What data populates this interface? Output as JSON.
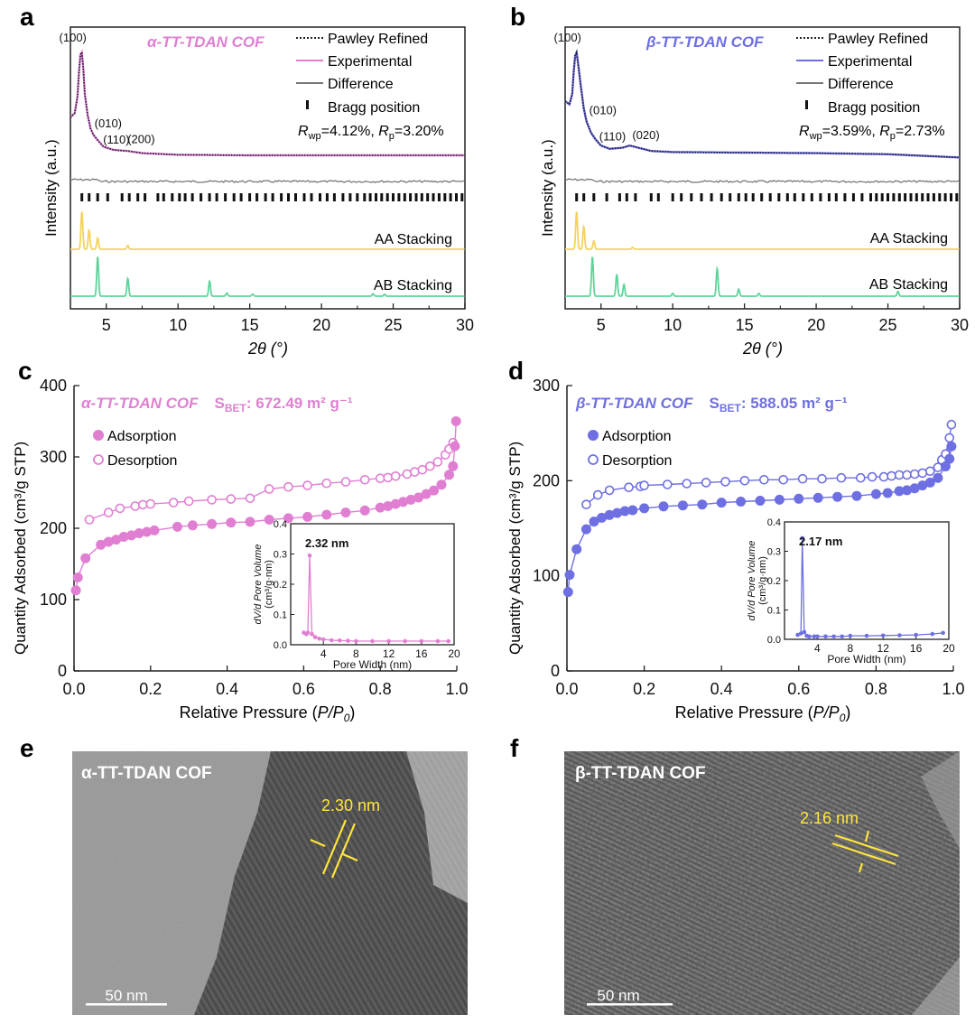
{
  "colors": {
    "alpha": "#e07fd2",
    "beta": "#6e6fe2",
    "aa": "#f3d35c",
    "ab": "#5ed49a",
    "diff": "#777777",
    "axis": "#222222",
    "scale": "#ffffff",
    "lattice": "#ffe63b"
  },
  "panels": {
    "a": "a",
    "b": "b",
    "c": "c",
    "d": "d",
    "e": "e",
    "f": "f"
  },
  "xrd_common": {
    "xlabel": "2θ (°)",
    "ylabel": "Intensity (a.u.)",
    "legend": [
      "Pawley Refined",
      "Experimental",
      "Difference",
      "Bragg position"
    ],
    "aa_label": "AA Stacking",
    "ab_label": "AB Stacking"
  },
  "bet_common": {
    "xlabel": "Relative Pressure (P/P0)",
    "ylabel": "Quantity Adsorbed (cm³/g STP)",
    "legend": [
      "Adsorption",
      "Desorption"
    ],
    "inset_xlabel": "Pore Width (nm)",
    "inset_ylabel_1": "dV/d Pore Volume",
    "inset_ylabel_2": "(cm³/g·nm)"
  },
  "chart_data": [
    {
      "panel": "a",
      "type": "line",
      "title": "α-TT-TDAN COF",
      "xlim": [
        2.5,
        30
      ],
      "xticks": [
        5,
        10,
        15,
        20,
        25,
        30
      ],
      "rwp": "4.12%",
      "rp": "3.20%",
      "peaks": [
        {
          "label": "(100)",
          "x": 3.3
        },
        {
          "label": "(010)",
          "x": 3.8
        },
        {
          "label": "(110)",
          "x": 4.4
        },
        {
          "label": "(200)",
          "x": 6.1
        }
      ],
      "experimental": {
        "x": [
          2.5,
          2.8,
          3.0,
          3.1,
          3.2,
          3.3,
          3.4,
          3.5,
          3.7,
          3.9,
          4.1,
          4.4,
          4.8,
          5.5,
          6.5,
          7.5,
          10,
          15,
          20,
          25,
          30
        ],
        "y": [
          0.4,
          0.44,
          0.6,
          0.82,
          0.98,
          1.0,
          0.85,
          0.62,
          0.42,
          0.3,
          0.24,
          0.19,
          0.13,
          0.1,
          0.09,
          0.07,
          0.055,
          0.05,
          0.05,
          0.05,
          0.05
        ]
      },
      "bragg": [
        3.3,
        3.8,
        4.4,
        5.1,
        6.1,
        6.6,
        7.2,
        7.7,
        8.6,
        9.0,
        9.6,
        10.1,
        10.5,
        11.0,
        11.6,
        12.2,
        12.7,
        13.3,
        13.9,
        14.4,
        15.0,
        15.5,
        16.1,
        16.6,
        17.2,
        17.7,
        18.2,
        18.8,
        19.3,
        19.9,
        20.4,
        20.9,
        21.5,
        22.0,
        22.5,
        23.0,
        23.4,
        23.8,
        24.2,
        24.6,
        25.0,
        25.4,
        25.8,
        26.2,
        26.6,
        27.0,
        27.4,
        27.8,
        28.2,
        28.6,
        29.0,
        29.4,
        29.8
      ],
      "aa_stacking": {
        "x": [
          3.3,
          3.8,
          4.4,
          6.5
        ],
        "y": [
          1.0,
          0.5,
          0.3,
          0.1
        ]
      },
      "ab_stacking": {
        "x": [
          4.4,
          6.5,
          12.2,
          13.4,
          15.2,
          23.6,
          24.4
        ],
        "y": [
          1.0,
          0.45,
          0.38,
          0.08,
          0.05,
          0.06,
          0.05
        ]
      }
    },
    {
      "panel": "b",
      "type": "line",
      "title": "β-TT-TDAN COF",
      "xlim": [
        2.5,
        30
      ],
      "xticks": [
        5,
        10,
        15,
        20,
        25,
        30
      ],
      "rwp": "3.59%",
      "rp": "2.73%",
      "peaks": [
        {
          "label": "(100)",
          "x": 3.3
        },
        {
          "label": "(010)",
          "x": 3.8
        },
        {
          "label": "(110)",
          "x": 4.5
        },
        {
          "label": "(020)",
          "x": 6.8
        }
      ],
      "experimental": {
        "x": [
          2.5,
          2.8,
          3.0,
          3.1,
          3.2,
          3.3,
          3.4,
          3.6,
          3.8,
          4.0,
          4.3,
          4.6,
          5.0,
          5.6,
          6.5,
          7.0,
          7.6,
          8.5,
          10,
          15,
          20,
          25,
          30
        ],
        "y": [
          0.55,
          0.52,
          0.62,
          0.82,
          0.97,
          1.0,
          0.9,
          0.68,
          0.48,
          0.36,
          0.26,
          0.2,
          0.14,
          0.11,
          0.12,
          0.14,
          0.12,
          0.09,
          0.08,
          0.075,
          0.07,
          0.06,
          0.03
        ]
      },
      "bragg": [
        3.3,
        3.8,
        4.5,
        5.4,
        6.3,
        6.8,
        7.4,
        8.5,
        9.0,
        10.0,
        10.6,
        11.3,
        12.0,
        12.7,
        13.4,
        14.0,
        14.6,
        15.1,
        15.6,
        16.2,
        16.8,
        17.4,
        18.0,
        18.5,
        19.1,
        19.7,
        20.3,
        20.9,
        21.4,
        22.0,
        22.6,
        23.2,
        23.8,
        24.2,
        24.6,
        25.0,
        25.4,
        25.8,
        26.2,
        26.6,
        27.0,
        27.4,
        27.8,
        28.2,
        28.6,
        29.0,
        29.4,
        29.8
      ],
      "aa_stacking": {
        "x": [
          3.3,
          3.8,
          4.5,
          7.2
        ],
        "y": [
          1.0,
          0.6,
          0.22,
          0.05
        ]
      },
      "ab_stacking": {
        "x": [
          4.4,
          6.1,
          6.6,
          10.0,
          13.1,
          14.6,
          16.0,
          25.7
        ],
        "y": [
          1.0,
          0.55,
          0.3,
          0.07,
          0.7,
          0.18,
          0.07,
          0.12
        ]
      }
    },
    {
      "panel": "c",
      "type": "scatter",
      "title": "α-TT-TDAN COF",
      "sbet": "672.49 m² g⁻¹",
      "xlim": [
        0,
        1
      ],
      "ylim": [
        0,
        400
      ],
      "xticks": [
        0.0,
        0.2,
        0.4,
        0.6,
        0.8,
        1.0
      ],
      "yticks": [
        0,
        100,
        200,
        300,
        400
      ],
      "adsorption": {
        "x": [
          0.005,
          0.01,
          0.03,
          0.07,
          0.09,
          0.11,
          0.13,
          0.15,
          0.17,
          0.19,
          0.21,
          0.27,
          0.31,
          0.36,
          0.41,
          0.46,
          0.51,
          0.56,
          0.61,
          0.66,
          0.71,
          0.76,
          0.8,
          0.82,
          0.84,
          0.86,
          0.88,
          0.9,
          0.92,
          0.94,
          0.96,
          0.98,
          0.99,
          0.995,
          0.998
        ],
        "y": [
          113,
          131,
          158,
          177,
          181,
          184,
          188,
          190,
          193,
          195,
          197,
          202,
          204,
          206,
          208,
          209,
          212,
          214,
          216,
          219,
          222,
          225,
          229,
          231,
          234,
          237,
          240,
          243,
          248,
          253,
          261,
          275,
          287,
          315,
          350
        ]
      },
      "desorption": {
        "x": [
          0.04,
          0.09,
          0.12,
          0.16,
          0.18,
          0.2,
          0.26,
          0.3,
          0.36,
          0.41,
          0.46,
          0.51,
          0.56,
          0.61,
          0.66,
          0.71,
          0.76,
          0.8,
          0.82,
          0.84,
          0.87,
          0.89,
          0.91,
          0.93,
          0.95,
          0.97,
          0.98,
          0.99
        ],
        "y": [
          212,
          222,
          228,
          231,
          233,
          234,
          236,
          238,
          240,
          241,
          242,
          255,
          258,
          260,
          263,
          265,
          268,
          270,
          271,
          273,
          276,
          279,
          282,
          287,
          293,
          303,
          311,
          320
        ]
      },
      "inset": {
        "label": "2.32 nm",
        "xlim": [
          0,
          20
        ],
        "ylim": [
          0,
          0.4
        ],
        "xticks": [
          4,
          8,
          12,
          16,
          20
        ],
        "yticks": [
          0.0,
          0.1,
          0.2,
          0.3,
          0.4
        ],
        "x": [
          1.6,
          1.9,
          2.1,
          2.32,
          2.6,
          3.0,
          3.5,
          4.0,
          5.0,
          6.0,
          7.0,
          8.0,
          10.0,
          12.0,
          14.0,
          16.0,
          18.0,
          19.3
        ],
        "y": [
          0.04,
          0.035,
          0.04,
          0.295,
          0.035,
          0.025,
          0.02,
          0.018,
          0.015,
          0.014,
          0.013,
          0.012,
          0.012,
          0.012,
          0.012,
          0.012,
          0.012,
          0.012
        ]
      }
    },
    {
      "panel": "d",
      "type": "scatter",
      "title": "β-TT-TDAN COF",
      "sbet": "588.05 m² g⁻¹",
      "xlim": [
        0,
        1
      ],
      "ylim": [
        0,
        300
      ],
      "xticks": [
        0.0,
        0.2,
        0.4,
        0.6,
        0.8,
        1.0
      ],
      "yticks": [
        0,
        100,
        200,
        300
      ],
      "adsorption": {
        "x": [
          0.003,
          0.007,
          0.025,
          0.05,
          0.07,
          0.09,
          0.11,
          0.13,
          0.15,
          0.17,
          0.2,
          0.25,
          0.3,
          0.35,
          0.4,
          0.45,
          0.5,
          0.55,
          0.6,
          0.65,
          0.7,
          0.75,
          0.8,
          0.83,
          0.86,
          0.88,
          0.9,
          0.92,
          0.94,
          0.96,
          0.98,
          0.99,
          0.995
        ],
        "y": [
          83,
          101,
          128,
          149,
          157,
          161,
          164,
          166,
          168,
          169,
          171,
          173,
          174,
          175,
          177,
          178,
          179,
          180,
          181,
          182,
          183,
          184,
          186,
          187,
          189,
          190,
          192,
          195,
          198,
          203,
          215,
          223,
          236
        ]
      },
      "desorption": {
        "x": [
          0.05,
          0.08,
          0.11,
          0.16,
          0.19,
          0.2,
          0.26,
          0.31,
          0.36,
          0.41,
          0.46,
          0.51,
          0.56,
          0.61,
          0.66,
          0.71,
          0.76,
          0.79,
          0.82,
          0.84,
          0.86,
          0.88,
          0.9,
          0.92,
          0.94,
          0.96,
          0.97,
          0.98,
          0.99,
          0.995
        ],
        "y": [
          175,
          185,
          190,
          193,
          194,
          195,
          196,
          197,
          198,
          199,
          200,
          201,
          201,
          202,
          202,
          203,
          203,
          204,
          204,
          205,
          206,
          206,
          207,
          208,
          210,
          214,
          222,
          228,
          245,
          259
        ]
      },
      "inset": {
        "label": "2.17 nm",
        "xlim": [
          0,
          20
        ],
        "ylim": [
          0,
          0.4
        ],
        "xticks": [
          4,
          8,
          12,
          16,
          20
        ],
        "yticks": [
          0.0,
          0.1,
          0.2,
          0.3,
          0.4
        ],
        "x": [
          1.6,
          2.0,
          2.17,
          2.4,
          2.7,
          3.0,
          3.6,
          4.0,
          5.0,
          6.0,
          7.0,
          8.0,
          10.0,
          12.0,
          14.0,
          16.0,
          18.0,
          19.3
        ],
        "y": [
          0.015,
          0.02,
          0.345,
          0.025,
          0.012,
          0.01,
          0.01,
          0.01,
          0.01,
          0.01,
          0.01,
          0.012,
          0.012,
          0.013,
          0.014,
          0.015,
          0.018,
          0.022
        ]
      }
    }
  ],
  "tem": [
    {
      "panel": "e",
      "label": "α-TT-TDAN COF",
      "spacing": "2.30 nm",
      "scale_bar": "50 nm"
    },
    {
      "panel": "f",
      "label": "β-TT-TDAN COF",
      "spacing": "2.16 nm",
      "scale_bar": "50 nm"
    }
  ]
}
